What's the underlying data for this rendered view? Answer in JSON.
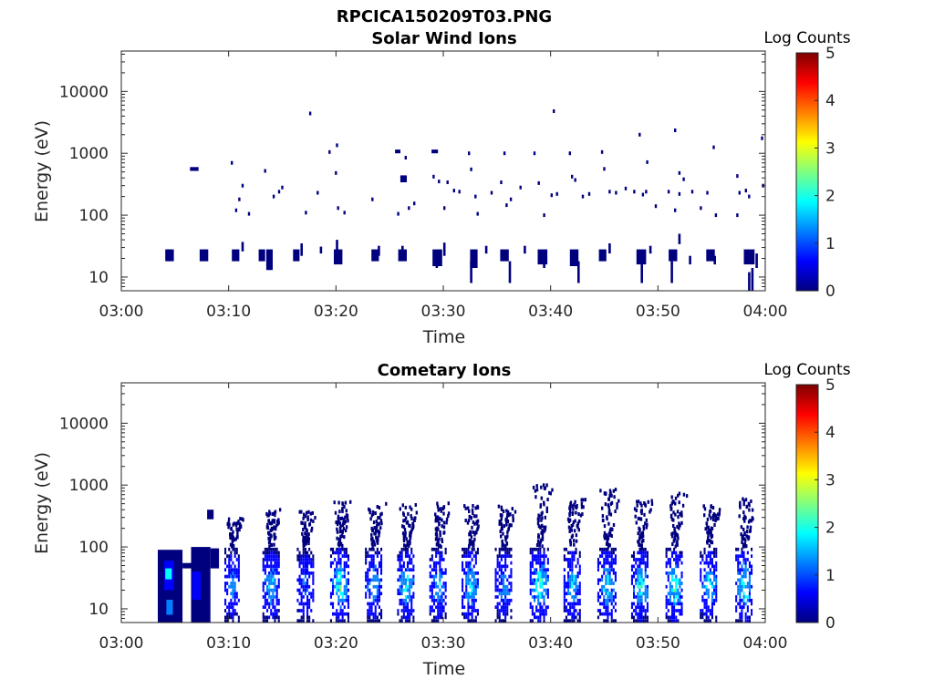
{
  "page_title": "RPCICA150209T03.PNG",
  "colormap": [
    "#00007f",
    "#0000ff",
    "#007fff",
    "#00ffff",
    "#7fff7f",
    "#ffff00",
    "#ff7f00",
    "#ff0000",
    "#7f0000"
  ],
  "chart_data": [
    {
      "type": "heatmap",
      "title": "Solar Wind Ions",
      "xlabel": "Time",
      "ylabel": "Energy (eV)",
      "x_ticks": [
        "03:00",
        "03:10",
        "03:20",
        "03:30",
        "03:40",
        "03:50",
        "04:00"
      ],
      "xlim_minutes": [
        0,
        60
      ],
      "y_scale": "log",
      "ylim": [
        6,
        45000
      ],
      "y_ticks": [
        {
          "value": 10,
          "label": "10"
        },
        {
          "value": 100,
          "label": "100"
        },
        {
          "value": 1000,
          "label": "1000"
        },
        {
          "value": 10000,
          "label": "10000"
        }
      ],
      "colorbar": {
        "label": "Log Counts",
        "range": [
          0,
          5
        ],
        "ticks": [
          "0",
          "1",
          "2",
          "3",
          "4",
          "5"
        ]
      },
      "grid": false,
      "cells": [
        {
          "t0": 4.1,
          "t1": 4.9,
          "e0": 18,
          "e1": 28,
          "c": 0.3
        },
        {
          "t0": 7.3,
          "t1": 8.1,
          "e0": 18,
          "e1": 28,
          "c": 0.3
        },
        {
          "t0": 10.3,
          "t1": 11.0,
          "e0": 18,
          "e1": 28,
          "c": 0.3
        },
        {
          "t0": 12.8,
          "t1": 13.4,
          "e0": 18,
          "e1": 28,
          "c": 0.3
        },
        {
          "t0": 13.5,
          "t1": 14.1,
          "e0": 13,
          "e1": 28,
          "c": 0.3
        },
        {
          "t0": 16.0,
          "t1": 16.6,
          "e0": 18,
          "e1": 28,
          "c": 0.3
        },
        {
          "t0": 19.8,
          "t1": 20.6,
          "e0": 16,
          "e1": 28,
          "c": 0.3
        },
        {
          "t0": 23.3,
          "t1": 24.0,
          "e0": 18,
          "e1": 28,
          "c": 0.3
        },
        {
          "t0": 25.8,
          "t1": 26.6,
          "e0": 18,
          "e1": 28,
          "c": 0.3
        },
        {
          "t0": 29.0,
          "t1": 29.9,
          "e0": 15,
          "e1": 28,
          "c": 0.3
        },
        {
          "t0": 32.5,
          "t1": 33.2,
          "e0": 14,
          "e1": 28,
          "c": 0.3
        },
        {
          "t0": 35.3,
          "t1": 36.1,
          "e0": 18,
          "e1": 28,
          "c": 0.3
        },
        {
          "t0": 38.8,
          "t1": 39.7,
          "e0": 16,
          "e1": 28,
          "c": 0.3
        },
        {
          "t0": 41.8,
          "t1": 42.6,
          "e0": 15,
          "e1": 28,
          "c": 0.3
        },
        {
          "t0": 44.5,
          "t1": 45.2,
          "e0": 18,
          "e1": 28,
          "c": 0.3
        },
        {
          "t0": 48.0,
          "t1": 48.9,
          "e0": 16,
          "e1": 28,
          "c": 0.3
        },
        {
          "t0": 51.0,
          "t1": 51.8,
          "e0": 18,
          "e1": 28,
          "c": 0.3
        },
        {
          "t0": 54.5,
          "t1": 55.3,
          "e0": 18,
          "e1": 28,
          "c": 0.3
        },
        {
          "t0": 58.0,
          "t1": 59.0,
          "e0": 16,
          "e1": 28,
          "c": 0.3
        },
        {
          "t0": 6.4,
          "t1": 7.2,
          "e0": 520,
          "e1": 600,
          "c": 0.3
        },
        {
          "t0": 25.5,
          "t1": 26.0,
          "e0": 1000,
          "e1": 1150,
          "c": 0.3
        },
        {
          "t0": 28.9,
          "t1": 29.5,
          "e0": 1000,
          "e1": 1150,
          "c": 0.3
        },
        {
          "t0": 26.0,
          "t1": 26.6,
          "e0": 340,
          "e1": 440,
          "c": 0.3
        }
      ],
      "dots": [
        [
          10.3,
          700
        ],
        [
          10.7,
          120
        ],
        [
          11.3,
          300
        ],
        [
          11.0,
          180
        ],
        [
          11.9,
          105
        ],
        [
          13.4,
          520
        ],
        [
          14.2,
          200
        ],
        [
          14.7,
          240
        ],
        [
          15.0,
          280
        ],
        [
          17.6,
          4400
        ],
        [
          18.3,
          230
        ],
        [
          17.2,
          110
        ],
        [
          19.4,
          1050
        ],
        [
          20.1,
          1350
        ],
        [
          20.0,
          480
        ],
        [
          20.2,
          130
        ],
        [
          20.8,
          110
        ],
        [
          23.4,
          180
        ],
        [
          26.8,
          130
        ],
        [
          27.3,
          155
        ],
        [
          25.8,
          105
        ],
        [
          29.1,
          420
        ],
        [
          29.6,
          350
        ],
        [
          30.4,
          340
        ],
        [
          31.5,
          240
        ],
        [
          32.4,
          1000
        ],
        [
          32.6,
          550
        ],
        [
          33.0,
          200
        ],
        [
          33.2,
          105
        ],
        [
          34.5,
          230
        ],
        [
          35.4,
          340
        ],
        [
          35.7,
          1000
        ],
        [
          36.3,
          180
        ],
        [
          37.2,
          280
        ],
        [
          38.5,
          1000
        ],
        [
          38.9,
          330
        ],
        [
          39.4,
          100
        ],
        [
          40.3,
          4800
        ],
        [
          40.1,
          210
        ],
        [
          40.6,
          220
        ],
        [
          41.8,
          1000
        ],
        [
          42.0,
          420
        ],
        [
          43.0,
          200
        ],
        [
          43.6,
          220
        ],
        [
          44.8,
          1050
        ],
        [
          45.0,
          560
        ],
        [
          45.5,
          240
        ],
        [
          46.1,
          230
        ],
        [
          47.0,
          270
        ],
        [
          47.8,
          240
        ],
        [
          48.3,
          2000
        ],
        [
          49.0,
          720
        ],
        [
          48.9,
          240
        ],
        [
          49.8,
          140
        ],
        [
          51.0,
          240
        ],
        [
          51.6,
          120
        ],
        [
          52.0,
          480
        ],
        [
          51.6,
          2350
        ],
        [
          52.4,
          380
        ],
        [
          53.2,
          240
        ],
        [
          54.0,
          130
        ],
        [
          54.6,
          230
        ],
        [
          55.2,
          1250
        ],
        [
          55.4,
          100
        ],
        [
          57.4,
          430
        ],
        [
          57.6,
          230
        ],
        [
          57.4,
          100
        ],
        [
          58.2,
          250
        ],
        [
          58.5,
          200
        ],
        [
          59.7,
          1750
        ],
        [
          59.8,
          300
        ],
        [
          30.1,
          130
        ],
        [
          31.0,
          250
        ],
        [
          48.6,
          215
        ],
        [
          42.3,
          370
        ],
        [
          35.9,
          145
        ],
        [
          52.0,
          220
        ],
        [
          26.5,
          850
        ]
      ],
      "stalks": [
        [
          4.4,
          18,
          28
        ],
        [
          7.8,
          18,
          28
        ],
        [
          11.3,
          26,
          37
        ],
        [
          13.8,
          13,
          22
        ],
        [
          16.8,
          22,
          35
        ],
        [
          18.6,
          24,
          31
        ],
        [
          20.1,
          22,
          40
        ],
        [
          24.0,
          22,
          32
        ],
        [
          26.2,
          22,
          32
        ],
        [
          29.4,
          14,
          22
        ],
        [
          30.1,
          22,
          36
        ],
        [
          32.6,
          8,
          18
        ],
        [
          34.0,
          24,
          32
        ],
        [
          36.2,
          8,
          18
        ],
        [
          37.6,
          24,
          32
        ],
        [
          39.4,
          14,
          22
        ],
        [
          42.6,
          8,
          18
        ],
        [
          45.5,
          24,
          35
        ],
        [
          48.5,
          8,
          18
        ],
        [
          49.3,
          24,
          32
        ],
        [
          51.3,
          8,
          18
        ],
        [
          52.0,
          34,
          50
        ],
        [
          53.0,
          16,
          22
        ],
        [
          55.3,
          16,
          22
        ],
        [
          58.5,
          6,
          12
        ],
        [
          59.2,
          14,
          24
        ],
        [
          58.8,
          6,
          14
        ]
      ]
    },
    {
      "type": "heatmap",
      "title": "Cometary Ions",
      "xlabel": "Time",
      "ylabel": "Energy (eV)",
      "x_ticks": [
        "03:00",
        "03:10",
        "03:20",
        "03:30",
        "03:40",
        "03:50",
        "04:00"
      ],
      "xlim_minutes": [
        0,
        60
      ],
      "y_scale": "log",
      "ylim": [
        6,
        45000
      ],
      "y_ticks": [
        {
          "value": 10,
          "label": "10"
        },
        {
          "value": 100,
          "label": "100"
        },
        {
          "value": 1000,
          "label": "1000"
        },
        {
          "value": 10000,
          "label": "10000"
        }
      ],
      "colorbar": {
        "label": "Log Counts",
        "range": [
          0,
          5
        ],
        "ticks": [
          "0",
          "1",
          "2",
          "3",
          "4",
          "5"
        ]
      },
      "grid": false,
      "cells": [
        {
          "t0": 3.4,
          "t1": 5.7,
          "e0": 6,
          "e1": 90,
          "c": 0.3
        },
        {
          "t0": 4.0,
          "t1": 4.9,
          "e0": 20,
          "e1": 60,
          "c": 0.9
        },
        {
          "t0": 4.1,
          "t1": 4.7,
          "e0": 30,
          "e1": 45,
          "c": 1.6
        },
        {
          "t0": 4.2,
          "t1": 4.8,
          "e0": 8,
          "e1": 14,
          "c": 1.0
        },
        {
          "t0": 6.5,
          "t1": 8.3,
          "e0": 6,
          "e1": 100,
          "c": 0.3
        },
        {
          "t0": 6.6,
          "t1": 7.4,
          "e0": 14,
          "e1": 40,
          "c": 0.7
        },
        {
          "t0": 8.3,
          "t1": 9.1,
          "e0": 45,
          "e1": 95,
          "c": 0.3
        },
        {
          "t0": 5.7,
          "t1": 6.5,
          "e0": 45,
          "e1": 55,
          "c": 0.3
        },
        {
          "t0": 8.0,
          "t1": 8.6,
          "e0": 280,
          "e1": 400,
          "c": 0.3
        }
      ],
      "bursts": [
        {
          "t": 10.3,
          "w": 1.4,
          "top": 300,
          "peak": 1.2
        },
        {
          "t": 13.9,
          "w": 1.5,
          "top": 450,
          "peak": 1.6
        },
        {
          "t": 17.1,
          "w": 1.5,
          "top": 400,
          "peak": 1.0
        },
        {
          "t": 20.3,
          "w": 1.7,
          "top": 550,
          "peak": 2.0
        },
        {
          "t": 23.5,
          "w": 1.6,
          "top": 500,
          "peak": 1.5
        },
        {
          "t": 26.5,
          "w": 1.6,
          "top": 480,
          "peak": 1.9
        },
        {
          "t": 29.5,
          "w": 1.6,
          "top": 520,
          "peak": 1.4
        },
        {
          "t": 32.5,
          "w": 1.6,
          "top": 480,
          "peak": 1.8
        },
        {
          "t": 35.6,
          "w": 1.6,
          "top": 500,
          "peak": 1.3
        },
        {
          "t": 38.9,
          "w": 1.7,
          "top": 1000,
          "peak": 2.1
        },
        {
          "t": 42.0,
          "w": 1.6,
          "top": 600,
          "peak": 1.5
        },
        {
          "t": 45.2,
          "w": 1.7,
          "top": 900,
          "peak": 1.8
        },
        {
          "t": 48.3,
          "w": 1.6,
          "top": 600,
          "peak": 1.9
        },
        {
          "t": 51.5,
          "w": 1.6,
          "top": 750,
          "peak": 2.2
        },
        {
          "t": 54.7,
          "w": 1.6,
          "top": 500,
          "peak": 1.6
        },
        {
          "t": 58.0,
          "w": 1.6,
          "top": 600,
          "peak": 2.1
        }
      ]
    }
  ]
}
